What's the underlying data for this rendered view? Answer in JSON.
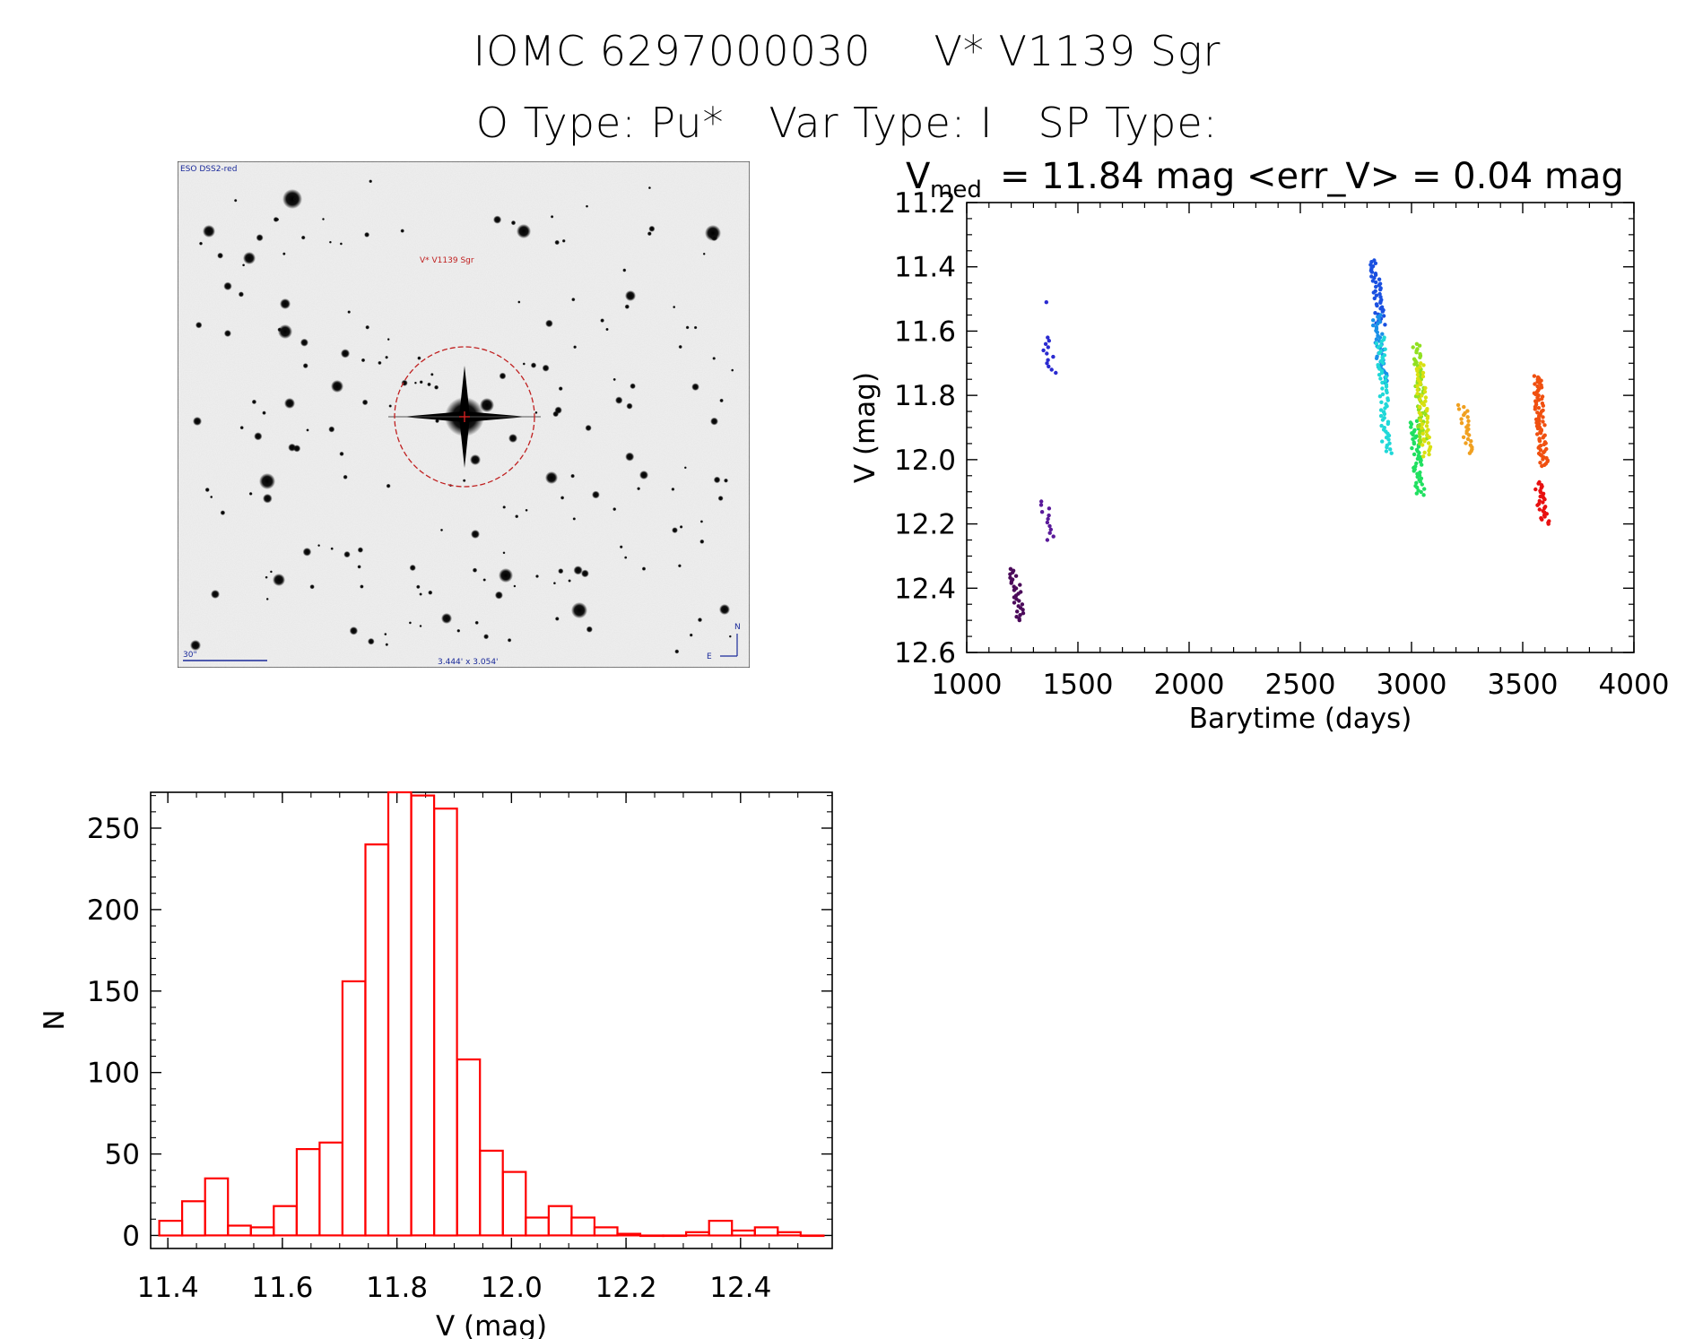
{
  "header": {
    "catalog_id": "IOMC 6297000030",
    "star_name": "V* V1139 Sgr",
    "otype": "O Type: Pu*",
    "vartype": "Var Type: I",
    "sptype": "SP Type:"
  },
  "finder_chart": {
    "survey_label": "ESO DSS2-red",
    "target_label": "V* V1139 Sgr",
    "scale_label": "30\"",
    "fov_label": "3.444' x 3.054'",
    "north_label": "N",
    "east_label": "E",
    "circle_color": "#c02020"
  },
  "stats": {
    "vmed_symbol": "V",
    "vmed_sub": "med",
    "vmed_text": "= 11.84 mag <err_V> = 0.04 mag"
  },
  "chart_data": [
    {
      "type": "scatter",
      "title": "V_med = 11.84 mag <err_V> = 0.04 mag",
      "xlabel": "Barytime (days)",
      "ylabel": "V (mag)",
      "xlim": [
        1000,
        4000
      ],
      "ylim": [
        12.6,
        11.2
      ],
      "y_inverted": true,
      "xticks": [
        1000,
        1500,
        2000,
        2500,
        3000,
        3500,
        4000
      ],
      "xtick_labels": [
        "1000",
        "1500",
        "2000",
        "2500",
        "3000",
        "3500",
        "4000"
      ],
      "yticks": [
        11.2,
        11.4,
        11.6,
        11.8,
        12.0,
        12.2,
        12.4,
        12.6
      ],
      "ytick_labels": [
        "11.2",
        "11.4",
        "11.6",
        "11.8",
        "12.0",
        "12.2",
        "12.4",
        "12.6"
      ],
      "groups": [
        {
          "t": 1210,
          "v_min": 12.34,
          "v_max": 12.5,
          "n": 30,
          "color": "#4b0a5a"
        },
        {
          "t": 1348,
          "v_min": 12.13,
          "v_max": 12.25,
          "n": 12,
          "color": "#5a1a9a"
        },
        {
          "t": 1352,
          "v_min": 11.62,
          "v_max": 11.73,
          "n": 12,
          "color": "#2a2ad0"
        },
        {
          "t": 1352,
          "v_min": 11.51,
          "v_max": 11.51,
          "n": 1,
          "color": "#2a2ad0"
        },
        {
          "t": 2830,
          "v_min": 11.38,
          "v_max": 11.58,
          "n": 45,
          "color": "#1a50e0"
        },
        {
          "t": 2842,
          "v_min": 11.55,
          "v_max": 11.76,
          "n": 40,
          "color": "#1a90e8"
        },
        {
          "t": 2858,
          "v_min": 11.62,
          "v_max": 11.98,
          "n": 60,
          "color": "#20d8d8"
        },
        {
          "t": 3008,
          "v_min": 11.88,
          "v_max": 12.11,
          "n": 50,
          "color": "#20e060"
        },
        {
          "t": 3022,
          "v_min": 11.64,
          "v_max": 11.95,
          "n": 60,
          "color": "#90e020"
        },
        {
          "t": 3036,
          "v_min": 11.7,
          "v_max": 11.99,
          "n": 50,
          "color": "#d8e010"
        },
        {
          "t": 3228,
          "v_min": 11.83,
          "v_max": 11.98,
          "n": 25,
          "color": "#f0a020"
        },
        {
          "t": 3562,
          "v_min": 11.74,
          "v_max": 12.02,
          "n": 80,
          "color": "#f05010"
        },
        {
          "t": 3568,
          "v_min": 12.07,
          "v_max": 12.2,
          "n": 30,
          "color": "#e81010"
        }
      ]
    },
    {
      "type": "bar",
      "histogram": true,
      "xlabel": "V (mag)",
      "ylabel": "N",
      "xlim": [
        11.37,
        12.56
      ],
      "ylim": [
        -8,
        272
      ],
      "bar_color": "#ff0000",
      "bin_width": 0.04,
      "bin_starts": [
        11.385,
        11.425,
        11.465,
        11.505,
        11.545,
        11.585,
        11.625,
        11.665,
        11.705,
        11.745,
        11.785,
        11.825,
        11.865,
        11.905,
        11.945,
        11.985,
        12.025,
        12.065,
        12.105,
        12.145,
        12.185,
        12.225,
        12.265,
        12.305,
        12.345,
        12.385,
        12.425,
        12.465,
        12.505
      ],
      "values": [
        9,
        21,
        35,
        6,
        5,
        18,
        53,
        57,
        156,
        240,
        272,
        270,
        262,
        108,
        52,
        39,
        11,
        18,
        11,
        5,
        1,
        0,
        0,
        2,
        9,
        3,
        5,
        2,
        0
      ],
      "xticks": [
        11.4,
        11.6,
        11.8,
        12.0,
        12.2,
        12.4
      ],
      "xtick_labels": [
        "11.4",
        "11.6",
        "11.8",
        "12.0",
        "12.2",
        "12.4"
      ],
      "yticks": [
        0,
        50,
        100,
        150,
        200,
        250
      ],
      "ytick_labels": [
        "0",
        "50",
        "100",
        "150",
        "200",
        "250"
      ]
    }
  ]
}
